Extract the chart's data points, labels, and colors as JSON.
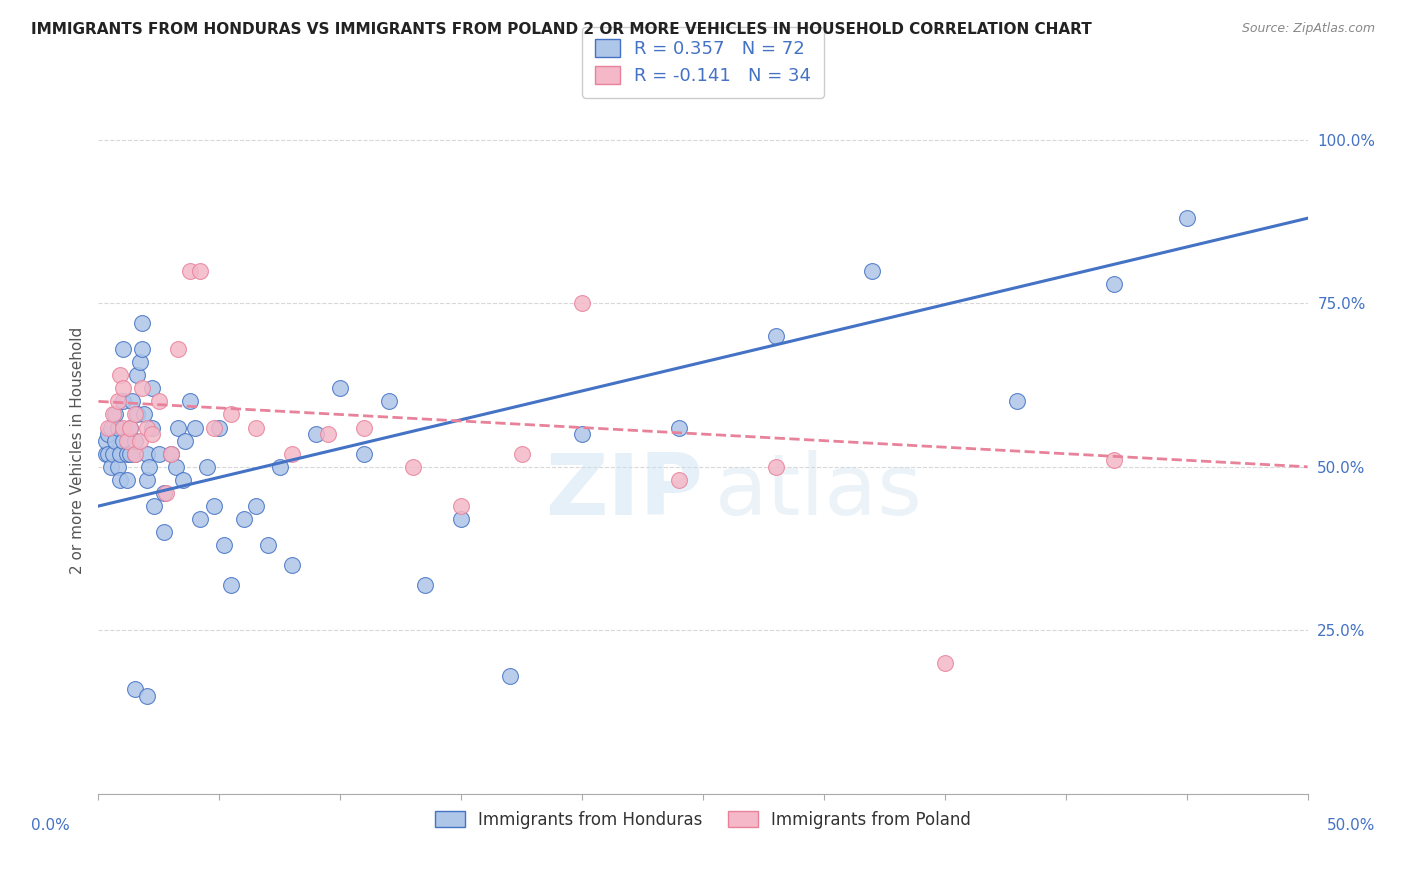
{
  "title": "IMMIGRANTS FROM HONDURAS VS IMMIGRANTS FROM POLAND 2 OR MORE VEHICLES IN HOUSEHOLD CORRELATION CHART",
  "source": "Source: ZipAtlas.com",
  "ylabel": "2 or more Vehicles in Household",
  "ytick_labels": [
    "",
    "25.0%",
    "50.0%",
    "75.0%",
    "100.0%"
  ],
  "ytick_values": [
    0.0,
    0.25,
    0.5,
    0.75,
    1.0
  ],
  "xlim": [
    0.0,
    0.5
  ],
  "ylim": [
    0.0,
    1.05
  ],
  "honduras_R": 0.357,
  "honduras_N": 72,
  "poland_R": -0.141,
  "poland_N": 34,
  "honduras_color": "#aec6e8",
  "poland_color": "#f4b8c8",
  "honduras_line_color": "#4472c4",
  "poland_line_color": "#e8829a",
  "legend_label_1": "Immigrants from Honduras",
  "legend_label_2": "Immigrants from Poland",
  "watermark": "ZIP atlas",
  "background_color": "#ffffff",
  "grid_color": "#d8d8d8",
  "honduras_x": [
    0.003,
    0.003,
    0.004,
    0.004,
    0.005,
    0.005,
    0.006,
    0.007,
    0.007,
    0.008,
    0.008,
    0.009,
    0.009,
    0.01,
    0.01,
    0.01,
    0.012,
    0.012,
    0.013,
    0.013,
    0.014,
    0.015,
    0.015,
    0.016,
    0.016,
    0.017,
    0.018,
    0.018,
    0.019,
    0.02,
    0.02,
    0.021,
    0.022,
    0.022,
    0.023,
    0.025,
    0.027,
    0.027,
    0.03,
    0.032,
    0.033,
    0.035,
    0.036,
    0.038,
    0.04,
    0.042,
    0.045,
    0.048,
    0.05,
    0.052,
    0.055,
    0.06,
    0.065,
    0.07,
    0.075,
    0.08,
    0.09,
    0.1,
    0.11,
    0.12,
    0.135,
    0.15,
    0.17,
    0.2,
    0.24,
    0.28,
    0.32,
    0.38,
    0.42,
    0.45,
    0.015,
    0.02
  ],
  "honduras_y": [
    0.52,
    0.54,
    0.52,
    0.55,
    0.5,
    0.56,
    0.52,
    0.54,
    0.58,
    0.5,
    0.56,
    0.52,
    0.48,
    0.54,
    0.6,
    0.68,
    0.52,
    0.48,
    0.56,
    0.52,
    0.6,
    0.52,
    0.54,
    0.58,
    0.64,
    0.66,
    0.68,
    0.72,
    0.58,
    0.52,
    0.48,
    0.5,
    0.56,
    0.62,
    0.44,
    0.52,
    0.46,
    0.4,
    0.52,
    0.5,
    0.56,
    0.48,
    0.54,
    0.6,
    0.56,
    0.42,
    0.5,
    0.44,
    0.56,
    0.38,
    0.32,
    0.42,
    0.44,
    0.38,
    0.5,
    0.35,
    0.55,
    0.62,
    0.52,
    0.6,
    0.32,
    0.42,
    0.18,
    0.55,
    0.56,
    0.7,
    0.8,
    0.6,
    0.78,
    0.88,
    0.16,
    0.15
  ],
  "poland_x": [
    0.004,
    0.006,
    0.008,
    0.009,
    0.01,
    0.01,
    0.012,
    0.013,
    0.015,
    0.015,
    0.017,
    0.018,
    0.02,
    0.022,
    0.025,
    0.028,
    0.03,
    0.033,
    0.038,
    0.042,
    0.048,
    0.055,
    0.065,
    0.08,
    0.095,
    0.11,
    0.13,
    0.15,
    0.175,
    0.2,
    0.24,
    0.28,
    0.35,
    0.42
  ],
  "poland_y": [
    0.56,
    0.58,
    0.6,
    0.64,
    0.56,
    0.62,
    0.54,
    0.56,
    0.58,
    0.52,
    0.54,
    0.62,
    0.56,
    0.55,
    0.6,
    0.46,
    0.52,
    0.68,
    0.8,
    0.8,
    0.56,
    0.58,
    0.56,
    0.52,
    0.55,
    0.56,
    0.5,
    0.44,
    0.52,
    0.75,
    0.48,
    0.5,
    0.2,
    0.51
  ],
  "honduras_trendline_x0": 0.0,
  "honduras_trendline_y0": 0.44,
  "honduras_trendline_x1": 0.5,
  "honduras_trendline_y1": 0.88,
  "poland_trendline_x0": 0.0,
  "poland_trendline_y0": 0.6,
  "poland_trendline_x1": 0.5,
  "poland_trendline_y1": 0.5
}
